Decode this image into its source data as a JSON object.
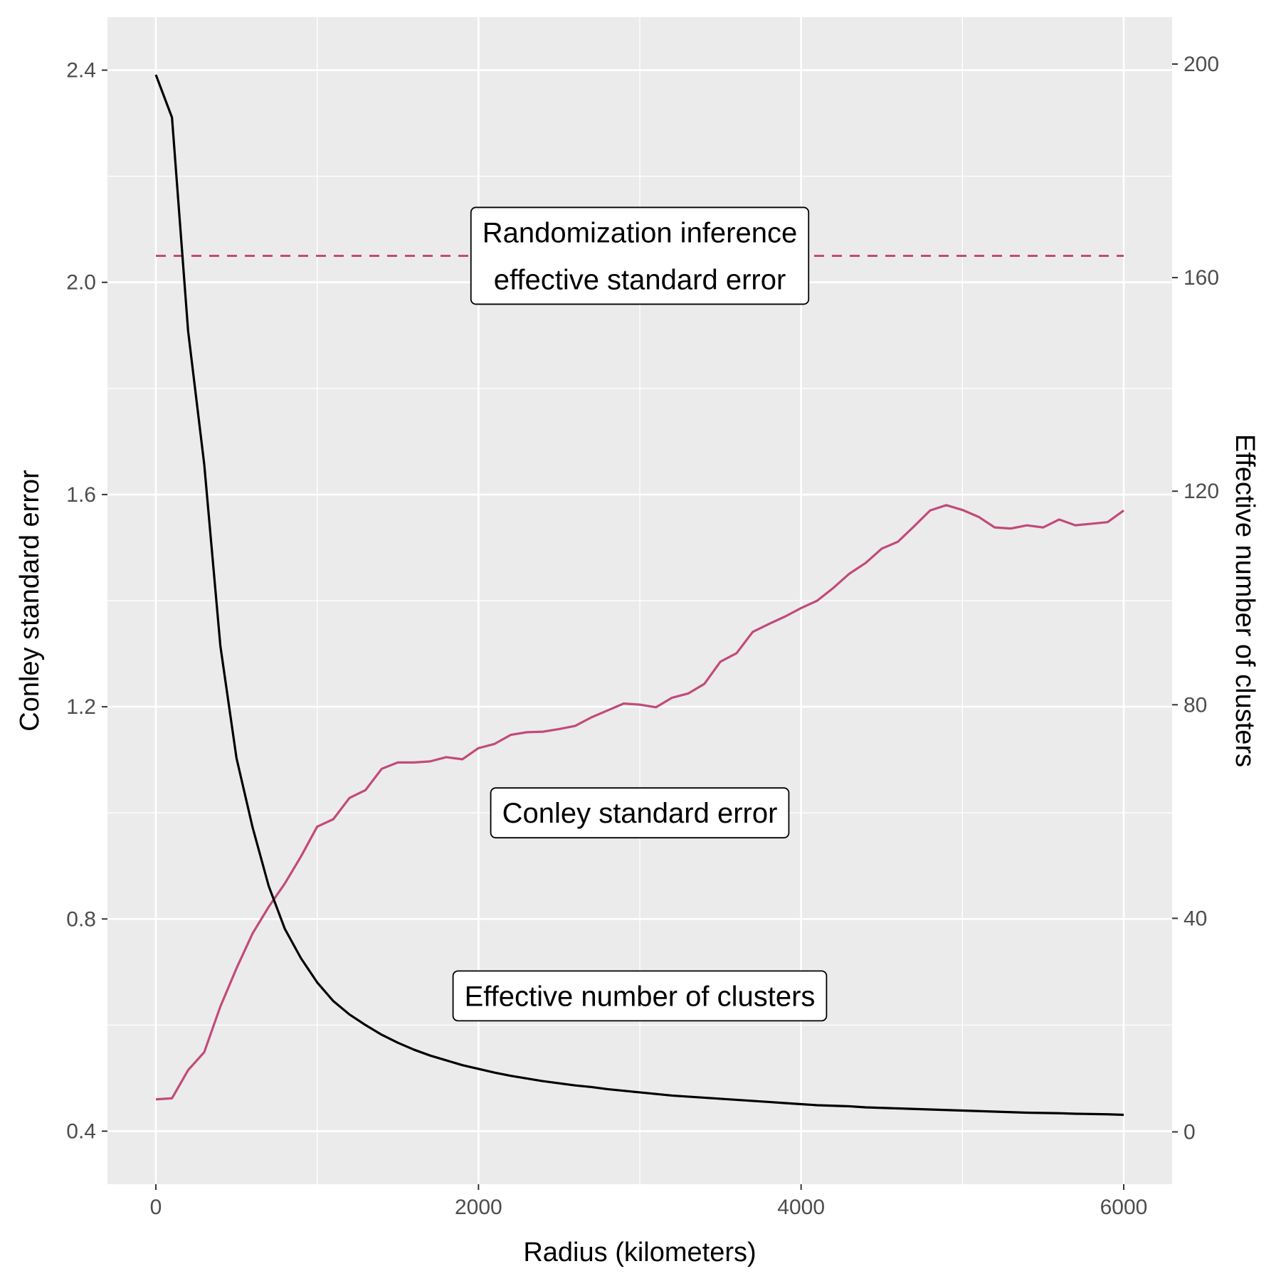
{
  "chart_data": {
    "type": "line",
    "xlabel": "Radius (kilometers)",
    "ylabel": "Conley standard error",
    "y2label": "Effective number of clusters",
    "xlim": [
      -300,
      6300
    ],
    "ylim": [
      0.3,
      2.5
    ],
    "y2lim": [
      -9.8,
      208.8
    ],
    "x_ticks": [
      0,
      2000,
      4000,
      6000
    ],
    "x_tick_labels": [
      "0",
      "2000",
      "4000",
      "6000"
    ],
    "y_ticks": [
      0.4,
      0.8,
      1.2,
      1.6,
      2.0,
      2.4
    ],
    "y_tick_labels": [
      "0.4",
      "0.8",
      "1.2",
      "1.6",
      "2.0",
      "2.4"
    ],
    "y2_ticks": [
      0,
      40,
      80,
      120,
      160,
      200
    ],
    "y2_tick_labels": [
      "0",
      "40",
      "80",
      "120",
      "160",
      "200"
    ],
    "grid": true,
    "background": "#ebebeb",
    "series": [
      {
        "axis": "left",
        "color": "#c24a7a",
        "x": [
          0,
          100,
          200,
          300,
          400,
          500,
          600,
          700,
          800,
          900,
          1000,
          1100,
          1200,
          1300,
          1400,
          1500,
          1600,
          1700,
          1800,
          1900,
          2000,
          2100,
          2200,
          2300,
          2400,
          2500,
          2600,
          2700,
          2800,
          2900,
          3000,
          3100,
          3200,
          3300,
          3400,
          3500,
          3600,
          3700,
          3800,
          3900,
          4000,
          4100,
          4200,
          4300,
          4400,
          4500,
          4600,
          4700,
          4800,
          4900,
          5000,
          5100,
          5200,
          5300,
          5400,
          5500,
          5600,
          5700,
          5800,
          5900,
          6000
        ],
        "values": [
          0.46,
          0.462,
          0.515,
          0.549,
          0.635,
          0.707,
          0.773,
          0.823,
          0.867,
          0.918,
          0.974,
          0.988,
          1.028,
          1.043,
          1.083,
          1.095,
          1.095,
          1.097,
          1.105,
          1.101,
          1.122,
          1.13,
          1.147,
          1.152,
          1.153,
          1.158,
          1.164,
          1.18,
          1.193,
          1.206,
          1.204,
          1.199,
          1.217,
          1.225,
          1.243,
          1.285,
          1.301,
          1.341,
          1.356,
          1.37,
          1.386,
          1.4,
          1.424,
          1.451,
          1.471,
          1.498,
          1.511,
          1.54,
          1.57,
          1.58,
          1.571,
          1.558,
          1.538,
          1.536,
          1.542,
          1.538,
          1.553,
          1.542,
          1.545,
          1.548,
          1.57
        ]
      },
      {
        "axis": "right",
        "color": "#000000",
        "x": [
          0,
          100,
          200,
          300,
          400,
          500,
          600,
          700,
          800,
          900,
          1000,
          1100,
          1200,
          1300,
          1400,
          1500,
          1600,
          1700,
          1800,
          1900,
          2000,
          2100,
          2200,
          2300,
          2400,
          2500,
          2600,
          2700,
          2800,
          2900,
          3000,
          3100,
          3200,
          3300,
          3400,
          3500,
          3600,
          3700,
          3800,
          3900,
          4000,
          4100,
          4200,
          4300,
          4400,
          4500,
          4600,
          4700,
          4800,
          4900,
          5000,
          5100,
          5200,
          5300,
          5400,
          5500,
          5600,
          5700,
          5800,
          5900,
          6000
        ],
        "values": [
          198,
          190,
          150,
          125,
          91,
          70,
          57,
          46,
          38,
          32.5,
          28,
          24.5,
          22,
          20,
          18.2,
          16.7,
          15.4,
          14.3,
          13.4,
          12.5,
          11.8,
          11.1,
          10.5,
          10.0,
          9.5,
          9.1,
          8.7,
          8.4,
          8.0,
          7.7,
          7.4,
          7.1,
          6.8,
          6.6,
          6.4,
          6.2,
          6.0,
          5.8,
          5.6,
          5.4,
          5.2,
          5.0,
          4.9,
          4.8,
          4.6,
          4.5,
          4.4,
          4.3,
          4.2,
          4.1,
          4.0,
          3.9,
          3.8,
          3.7,
          3.6,
          3.55,
          3.5,
          3.4,
          3.35,
          3.3,
          3.2
        ]
      }
    ],
    "reference_line": {
      "axis": "left",
      "value": 2.05,
      "x_range": [
        0,
        6000
      ],
      "style": "dashed",
      "color": "#c24a7a"
    },
    "annotations": [
      {
        "lines": [
          "Randomization inference",
          "effective standard error"
        ],
        "x": 3000,
        "y": 2.05
      },
      {
        "lines": [
          "Conley standard error"
        ],
        "x": 3000,
        "y": 1.0
      },
      {
        "lines": [
          "Effective number of clusters"
        ],
        "x": 3000,
        "y": 0.655
      }
    ]
  }
}
